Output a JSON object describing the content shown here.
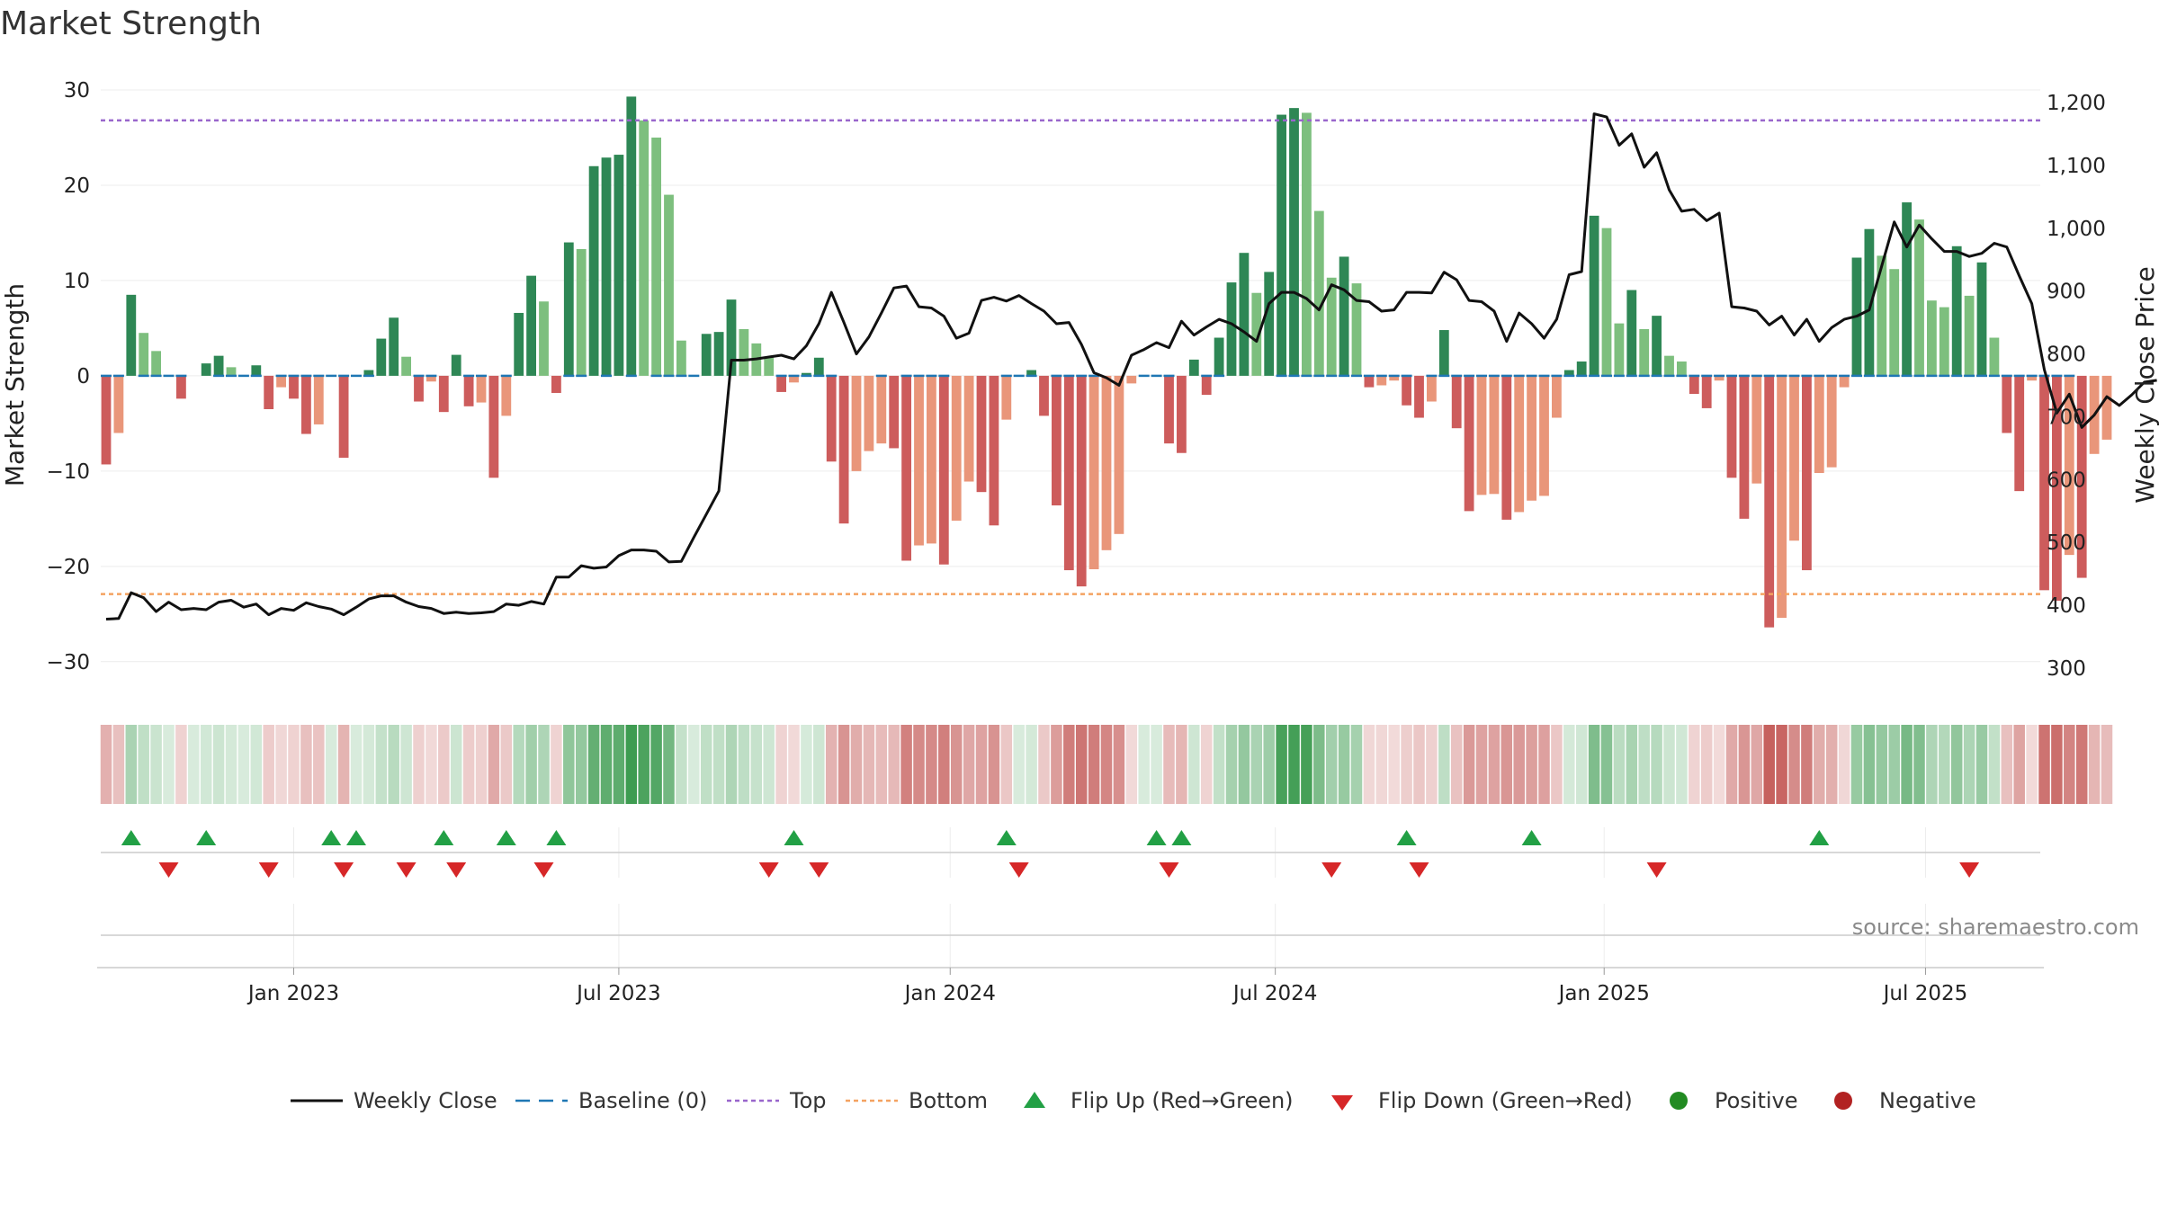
{
  "chart_data": {
    "type": "bar",
    "title": "Market Strength",
    "ylabel": "Market Strength",
    "y2label": "Weekly Close Price",
    "ylim": [
      -32,
      30
    ],
    "y2lim": [
      280,
      1220
    ],
    "yticks": [
      30,
      20,
      10,
      0,
      -10,
      -20,
      -30
    ],
    "ytick_labels": [
      "30",
      "20",
      "10",
      "0",
      "−10",
      "−20",
      "−30"
    ],
    "y2ticks": [
      1200,
      1100,
      1000,
      900,
      800,
      700,
      600,
      500,
      400,
      300
    ],
    "y2tick_labels": [
      "1,200",
      "1,100",
      "1,000",
      "900",
      "800",
      "700",
      "600",
      "500",
      "400",
      "300"
    ],
    "x_dates": [
      "Jan 2023",
      "Jul 2023",
      "Jan 2024",
      "Jul 2024",
      "Jan 2025",
      "Jul 2025"
    ],
    "x_date_week_index": [
      15,
      41,
      67.5,
      93.5,
      119.8,
      145.5
    ],
    "top_line": 26.8,
    "bottom_line": -22.9,
    "strength": [
      -9.3,
      -6,
      8.5,
      4.5,
      2.6,
      0,
      -2.4,
      0,
      1.3,
      2.1,
      0.9,
      0,
      1.1,
      -3.5,
      -1.2,
      -2.4,
      -6.1,
      -5.1,
      0,
      -8.6,
      0,
      0.6,
      3.9,
      6.1,
      2,
      -2.7,
      -0.6,
      -3.8,
      2.2,
      -3.2,
      -2.8,
      -10.7,
      -4.2,
      6.6,
      10.5,
      7.8,
      -1.8,
      14,
      13.3,
      22,
      22.9,
      23.2,
      29.3,
      26.8,
      25,
      19,
      3.7,
      0,
      4.4,
      4.6,
      8,
      4.9,
      3.4,
      2,
      -1.7,
      -0.7,
      0.3,
      1.9,
      -9,
      -15.5,
      -10,
      -7.9,
      -7.1,
      -7.6,
      -19.4,
      -17.8,
      -17.6,
      -19.8,
      -15.2,
      -11.1,
      -12.2,
      -15.7,
      -4.6,
      0,
      0.6,
      -4.2,
      -13.6,
      -20.4,
      -22.1,
      -20.3,
      -18.3,
      -16.6,
      -0.8,
      0,
      0,
      -7.1,
      -8.1,
      1.7,
      -2,
      4,
      9.8,
      12.9,
      8.7,
      10.9,
      27.4,
      28.1,
      27.6,
      17.3,
      10.3,
      12.5,
      9.7,
      -1.2,
      -1,
      -0.5,
      -3.1,
      -4.4,
      -2.7,
      4.8,
      -5.5,
      -14.2,
      -12.5,
      -12.4,
      -15.1,
      -14.3,
      -13.1,
      -12.6,
      -4.4,
      0.6,
      1.5,
      16.8,
      15.5,
      5.5,
      9,
      4.9,
      6.3,
      2.1,
      1.5,
      -1.9,
      -3.4,
      -0.5,
      -10.7,
      -15,
      -11.3,
      -26.4,
      -25.4,
      -17.3,
      -20.4,
      -10.2,
      -9.6,
      -1.2,
      12.4,
      15.4,
      12.6,
      11.2,
      18.2,
      16.4,
      7.9,
      7.2,
      13.6,
      8.4,
      11.9,
      4,
      -6,
      -12.1,
      -0.5,
      -22.5,
      -23.6,
      -18.8,
      -21.2,
      -8.2,
      -6.7
    ],
    "weekly_close": [
      378,
      379,
      420,
      412,
      390,
      405,
      393,
      395,
      393,
      405,
      408,
      397,
      402,
      385,
      395,
      392,
      404,
      398,
      394,
      385,
      397,
      410,
      415,
      415,
      405,
      398,
      395,
      387,
      389,
      387,
      388,
      390,
      402,
      400,
      406,
      402,
      445,
      445,
      463,
      459,
      461,
      479,
      488,
      488,
      486,
      469,
      470,
      508,
      545,
      582,
      790,
      790,
      792,
      795,
      798,
      792,
      813,
      848,
      898,
      850,
      800,
      827,
      865,
      905,
      908,
      875,
      873,
      860,
      825,
      833,
      885,
      890,
      884,
      893,
      880,
      868,
      848,
      850,
      815,
      770,
      762,
      750,
      798,
      807,
      818,
      810,
      852,
      830,
      843,
      855,
      848,
      835,
      820,
      880,
      898,
      898,
      888,
      870,
      910,
      902,
      885,
      883,
      868,
      870,
      898,
      898,
      897,
      930,
      918,
      885,
      883,
      868,
      820,
      865,
      848,
      825,
      855,
      926,
      931,
      1182,
      1177,
      1132,
      1150,
      1097,
      1120,
      1061,
      1027,
      1030,
      1012,
      1024,
      875,
      873,
      868,
      846,
      860,
      830,
      855,
      820,
      842,
      855,
      860,
      870,
      940,
      1010,
      970,
      1005,
      983,
      963,
      963,
      955,
      960,
      976,
      970,
      924,
      880,
      775,
      706,
      736,
      683,
      703,
      732,
      718,
      735,
      755,
      758
    ],
    "zero_line_weeks": [
      0,
      1,
      3,
      4,
      5,
      6,
      9,
      10,
      11,
      12,
      14,
      15,
      16,
      17,
      18,
      19,
      20,
      21,
      25,
      26,
      29,
      30,
      32,
      37,
      38,
      40,
      42,
      44,
      45,
      46,
      47,
      54,
      55,
      56,
      57,
      58,
      62,
      64,
      65,
      66,
      67,
      72,
      73,
      74,
      76,
      77,
      78,
      79,
      83,
      84,
      85,
      88,
      89,
      94,
      95,
      96,
      97,
      98,
      99,
      100,
      101,
      102,
      103,
      104,
      106,
      107,
      108,
      109,
      110,
      111,
      112,
      113,
      114,
      115,
      116,
      117,
      118,
      119,
      120,
      121,
      122,
      123,
      124,
      125,
      126,
      127,
      128,
      129,
      130,
      131,
      132,
      133,
      134,
      135,
      136,
      137,
      138,
      139,
      140,
      141,
      142,
      143,
      144,
      145,
      146,
      147,
      148,
      149,
      150,
      151,
      152,
      153,
      154,
      155,
      156,
      157
    ],
    "flip_up_weeks": [
      2,
      8,
      18,
      20,
      27,
      32,
      36,
      55,
      72,
      84,
      86,
      104,
      114,
      137
    ],
    "flip_down_weeks": [
      5,
      13,
      19,
      24,
      28,
      35,
      53,
      57,
      73,
      85,
      98,
      105,
      124,
      149
    ],
    "heat_weeks": 157,
    "legend": [
      "Weekly Close",
      "Baseline (0)",
      "Top",
      "Bottom",
      "Flip Up (Red→Green)",
      "Flip Down (Green→Red)",
      "Positive",
      "Negative"
    ],
    "colors": {
      "strong_green": "#2e8755",
      "light_green": "#7dbf7e",
      "strong_red": "#cd5c5c",
      "light_red": "#e9967a",
      "top": "#9966cc",
      "bottom": "#f4a261",
      "baseline": "#1f77b4",
      "flip_up": "#22a045",
      "flip_down": "#d62728",
      "positive": "#228b22",
      "negative": "#b22222",
      "close": "#111111"
    }
  },
  "source_text": "source: sharemaestro.com"
}
